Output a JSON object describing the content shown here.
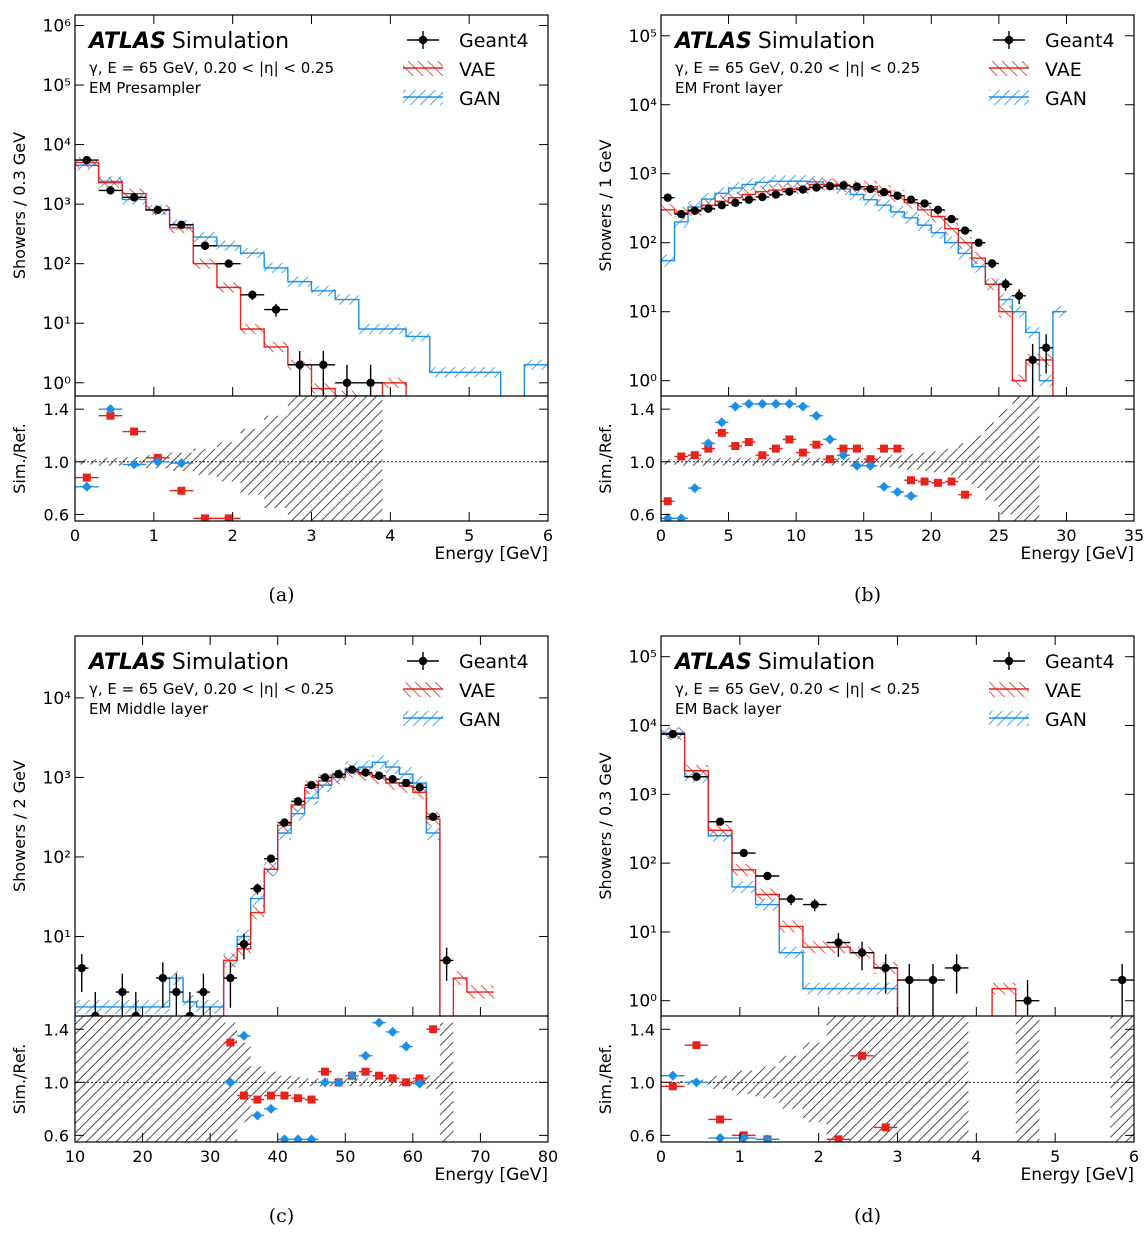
{
  "colors": {
    "geant4": "#000000",
    "vae": "#e8231b",
    "gan": "#1b8fe8"
  },
  "chart_data": [
    {
      "type": "histogram",
      "panel_label": "(a)",
      "atlas_bold": "ATLAS",
      "atlas_rest": "Simulation",
      "info_line1": "γ, E = 65 GeV, 0.20 < |η| < 0.25",
      "info_line2": "EM Presampler",
      "legend": [
        "Geant4",
        "VAE",
        "GAN"
      ],
      "ylabel_main": "Showers / 0.3 GeV",
      "ylabel_ratio": "Sim./Ref.",
      "xlabel": "Energy [GeV]",
      "log_y": true,
      "xlim": [
        0,
        6
      ],
      "ylim": [
        0.6,
        1500000
      ],
      "ratio_ylim": [
        0.55,
        1.5
      ],
      "xticks": [
        0,
        1,
        2,
        3,
        4,
        5,
        6
      ],
      "yticks": [
        {
          "v": 1,
          "l": "10⁰"
        },
        {
          "v": 10,
          "l": "10¹"
        },
        {
          "v": 100,
          "l": "10²"
        },
        {
          "v": 1000,
          "l": "10³"
        },
        {
          "v": 10000,
          "l": "10⁴"
        },
        {
          "v": 100000,
          "l": "10⁵"
        },
        {
          "v": 1000000,
          "l": "10⁶"
        }
      ],
      "ratio_yticks": [
        "0.6",
        "1.0",
        "1.4"
      ],
      "bin_edges": [
        0,
        0.3,
        0.6,
        0.9,
        1.2,
        1.5,
        1.8,
        2.1,
        2.4,
        2.7,
        3.0,
        3.3,
        3.6,
        3.9,
        4.2,
        4.5,
        4.8,
        5.1,
        5.4,
        5.7,
        6.0
      ],
      "geant4": [
        5500,
        1700,
        1300,
        800,
        450,
        200,
        100,
        30,
        17,
        2,
        2,
        1,
        1,
        null,
        null,
        null,
        null,
        null,
        null,
        null
      ],
      "vae": [
        5000,
        2300,
        1500,
        800,
        400,
        100,
        40,
        8,
        4,
        2,
        0.8,
        0.6,
        0.5,
        1,
        null,
        null,
        null,
        null,
        null,
        null
      ],
      "gan": [
        4500,
        2400,
        1200,
        800,
        450,
        280,
        200,
        150,
        85,
        50,
        35,
        25,
        8,
        8,
        6,
        1.5,
        1.5,
        1.5,
        null,
        2
      ],
      "ratio_vae": [
        0.88,
        1.35,
        1.23,
        1.03,
        0.78,
        0.54,
        0.53
      ],
      "ratio_gan": [
        0.81,
        1.4,
        0.98,
        1.0,
        0.99
      ],
      "ratio_ref_band_halfwidth": [
        0.02,
        0.03,
        0.035,
        0.05,
        0.07,
        0.1,
        0.15,
        0.25,
        0.35,
        0.55,
        0.6,
        0.7,
        0.8,
        0,
        0,
        0,
        0,
        0,
        0,
        0
      ]
    },
    {
      "type": "histogram",
      "panel_label": "(b)",
      "atlas_bold": "ATLAS",
      "atlas_rest": "Simulation",
      "info_line1": "γ, E = 65 GeV, 0.20 < |η| < 0.25",
      "info_line2": "EM Front layer",
      "legend": [
        "Geant4",
        "VAE",
        "GAN"
      ],
      "ylabel_main": "Showers / 1 GeV",
      "ylabel_ratio": "Sim./Ref.",
      "xlabel": "Energy [GeV]",
      "log_y": true,
      "xlim": [
        0,
        35
      ],
      "ylim": [
        0.6,
        200000
      ],
      "ratio_ylim": [
        0.55,
        1.5
      ],
      "xticks": [
        0,
        5,
        10,
        15,
        20,
        25,
        30,
        35
      ],
      "yticks": [
        {
          "v": 1,
          "l": "10⁰"
        },
        {
          "v": 10,
          "l": "10¹"
        },
        {
          "v": 100,
          "l": "10²"
        },
        {
          "v": 1000,
          "l": "10³"
        },
        {
          "v": 10000,
          "l": "10⁴"
        },
        {
          "v": 100000,
          "l": "10⁵"
        }
      ],
      "ratio_yticks": [
        "0.6",
        "1.0",
        "1.4"
      ],
      "bin_edges": [
        0,
        1,
        2,
        3,
        4,
        5,
        6,
        7,
        8,
        9,
        10,
        11,
        12,
        13,
        14,
        15,
        16,
        17,
        18,
        19,
        20,
        21,
        22,
        23,
        24,
        25,
        26,
        27,
        28,
        29,
        30
      ],
      "geant4": [
        450,
        260,
        290,
        310,
        350,
        380,
        420,
        460,
        500,
        550,
        590,
        630,
        660,
        680,
        650,
        600,
        540,
        480,
        420,
        370,
        300,
        220,
        150,
        100,
        50,
        25,
        17,
        2,
        3,
        null
      ],
      "vae": [
        300,
        270,
        300,
        350,
        400,
        450,
        500,
        550,
        580,
        600,
        620,
        700,
        700,
        660,
        650,
        650,
        560,
        480,
        380,
        300,
        240,
        160,
        100,
        60,
        25,
        10,
        1,
        2,
        2,
        null
      ],
      "gan": [
        55,
        200,
        330,
        430,
        520,
        620,
        700,
        750,
        780,
        780,
        780,
        760,
        700,
        600,
        500,
        420,
        350,
        280,
        230,
        180,
        140,
        100,
        70,
        45,
        25,
        15,
        10,
        5,
        1,
        10
      ],
      "ratio_vae": [
        0.7,
        1.04,
        1.05,
        1.1,
        1.22,
        1.12,
        1.15,
        1.05,
        1.1,
        1.17,
        1.07,
        1.13,
        1.02,
        1.1,
        1.1,
        1.02,
        1.1,
        1.1,
        0.86,
        0.85,
        0.84,
        0.85,
        0.75
      ],
      "ratio_gan": [
        0.55,
        0.55,
        0.8,
        1.14,
        1.3,
        1.42,
        1.44,
        1.44,
        1.44,
        1.44,
        1.42,
        1.35,
        1.17,
        1.05,
        0.97,
        0.97,
        0.81,
        0.77,
        0.74
      ],
      "ratio_ref_band_halfwidth": [
        0.02,
        0.03,
        0.03,
        0.03,
        0.03,
        0.03,
        0.03,
        0.03,
        0.03,
        0.03,
        0.03,
        0.03,
        0.03,
        0.03,
        0.03,
        0.03,
        0.04,
        0.05,
        0.06,
        0.07,
        0.08,
        0.1,
        0.14,
        0.2,
        0.3,
        0.4,
        0.5,
        0.6,
        0,
        0
      ]
    },
    {
      "type": "histogram",
      "panel_label": "(c)",
      "atlas_bold": "ATLAS",
      "atlas_rest": "Simulation",
      "info_line1": "γ, E = 65 GeV, 0.20 < |η| < 0.25",
      "info_line2": "EM Middle layer",
      "legend": [
        "Geant4",
        "VAE",
        "GAN"
      ],
      "ylabel_main": "Showers / 2 GeV",
      "ylabel_ratio": "Sim./Ref.",
      "xlabel": "Energy [GeV]",
      "log_y": true,
      "xlim": [
        10,
        80
      ],
      "ylim": [
        1,
        60000
      ],
      "ratio_ylim": [
        0.55,
        1.5
      ],
      "xticks": [
        10,
        20,
        30,
        40,
        50,
        60,
        70,
        80
      ],
      "yticks": [
        {
          "v": 10,
          "l": "10¹"
        },
        {
          "v": 100,
          "l": "10²"
        },
        {
          "v": 1000,
          "l": "10³"
        },
        {
          "v": 10000,
          "l": "10⁴"
        }
      ],
      "ratio_yticks": [
        "0.6",
        "1.0",
        "1.4"
      ],
      "bin_edges": [
        10,
        12,
        14,
        16,
        18,
        20,
        22,
        24,
        26,
        28,
        30,
        32,
        34,
        36,
        38,
        40,
        42,
        44,
        46,
        48,
        50,
        52,
        54,
        56,
        58,
        60,
        62,
        64,
        66,
        68,
        70,
        72
      ],
      "geant4": [
        4,
        1,
        null,
        2,
        1,
        null,
        3,
        2,
        1,
        2,
        null,
        3,
        8,
        40,
        95,
        270,
        500,
        800,
        1000,
        1100,
        1250,
        1150,
        1050,
        950,
        850,
        750,
        320,
        5,
        null,
        null,
        null
      ],
      "vae": [
        null,
        null,
        null,
        null,
        null,
        null,
        null,
        null,
        null,
        null,
        null,
        5,
        7,
        20,
        70,
        250,
        450,
        750,
        900,
        1000,
        1200,
        1100,
        1000,
        850,
        780,
        650,
        300,
        null,
        3,
        2,
        2
      ],
      "gan": [
        1.3,
        1.3,
        1.3,
        1.3,
        1.3,
        1.3,
        1.3,
        3,
        1.5,
        1.3,
        1.3,
        5,
        10,
        30,
        70,
        200,
        350,
        550,
        800,
        1050,
        1300,
        1350,
        1550,
        1350,
        1100,
        850,
        200,
        null,
        null,
        null,
        null
      ],
      "ratio_vae": [
        null,
        null,
        null,
        null,
        null,
        null,
        null,
        null,
        null,
        null,
        null,
        1.3,
        0.9,
        0.87,
        0.9,
        0.9,
        0.88,
        0.87,
        1.08,
        1.0,
        1.05,
        1.08,
        1.05,
        1.03,
        1.0,
        1.03,
        1.4
      ],
      "ratio_gan": [
        null,
        null,
        null,
        null,
        null,
        null,
        null,
        null,
        null,
        null,
        null,
        1.0,
        1.35,
        0.75,
        0.8,
        0.55,
        0.56,
        0.57,
        1.0,
        1.0,
        1.05,
        1.2,
        1.45,
        1.38,
        1.27,
        0.99
      ],
      "ratio_ref_band_halfwidth": [
        0.6,
        0.6,
        0.6,
        0.6,
        0.6,
        0.6,
        0.6,
        0.6,
        0.6,
        0.6,
        0.6,
        0.45,
        0.3,
        0.12,
        0.08,
        0.05,
        0.04,
        0.03,
        0.03,
        0.03,
        0.03,
        0.03,
        0.03,
        0.03,
        0.03,
        0.03,
        0.05,
        0.45,
        0,
        0,
        0
      ]
    },
    {
      "type": "histogram",
      "panel_label": "(d)",
      "atlas_bold": "ATLAS",
      "atlas_rest": "Simulation",
      "info_line1": "γ, E = 65 GeV, 0.20 < |η| < 0.25",
      "info_line2": "EM Back layer",
      "legend": [
        "Geant4",
        "VAE",
        "GAN"
      ],
      "ylabel_main": "Showers / 0.3 GeV",
      "ylabel_ratio": "Sim./Ref.",
      "xlabel": "Energy [GeV]",
      "log_y": true,
      "xlim": [
        0,
        6
      ],
      "ylim": [
        0.6,
        200000
      ],
      "ratio_ylim": [
        0.55,
        1.5
      ],
      "xticks": [
        0,
        1,
        2,
        3,
        4,
        5,
        6
      ],
      "yticks": [
        {
          "v": 1,
          "l": "10⁰"
        },
        {
          "v": 10,
          "l": "10¹"
        },
        {
          "v": 100,
          "l": "10²"
        },
        {
          "v": 1000,
          "l": "10³"
        },
        {
          "v": 10000,
          "l": "10⁴"
        },
        {
          "v": 100000,
          "l": "10⁵"
        }
      ],
      "ratio_yticks": [
        "0.6",
        "1.0",
        "1.4"
      ],
      "bin_edges": [
        0,
        0.3,
        0.6,
        0.9,
        1.2,
        1.5,
        1.8,
        2.1,
        2.4,
        2.7,
        3.0,
        3.3,
        3.6,
        3.9,
        4.2,
        4.5,
        4.8,
        5.1,
        5.4,
        5.7,
        6.0
      ],
      "geant4": [
        7500,
        1800,
        400,
        140,
        65,
        30,
        25,
        7,
        5,
        3,
        2,
        2,
        3,
        null,
        null,
        1,
        null,
        null,
        null,
        2
      ],
      "vae": [
        7500,
        2200,
        300,
        80,
        35,
        12,
        6,
        6,
        5,
        3,
        null,
        null,
        null,
        null,
        1.5,
        null,
        null,
        null,
        null,
        null
      ],
      "gan": [
        7800,
        1800,
        250,
        45,
        25,
        5,
        1.5,
        1.5,
        1.5,
        1.5,
        null,
        null,
        null,
        null,
        null,
        null,
        null,
        null,
        null,
        null
      ],
      "ratio_vae": [
        0.97,
        1.28,
        0.72,
        0.6,
        0.57,
        null,
        null,
        0.57,
        1.2,
        0.66
      ],
      "ratio_gan": [
        1.05,
        1.0,
        0.58,
        0.58,
        0.57
      ],
      "ratio_ref_band_halfwidth": [
        0.01,
        0.02,
        0.05,
        0.09,
        0.12,
        0.2,
        0.3,
        0.5,
        0.6,
        0.6,
        0.6,
        0.6,
        0.6,
        0,
        0,
        0.6,
        0,
        0,
        0,
        0.6
      ]
    }
  ]
}
